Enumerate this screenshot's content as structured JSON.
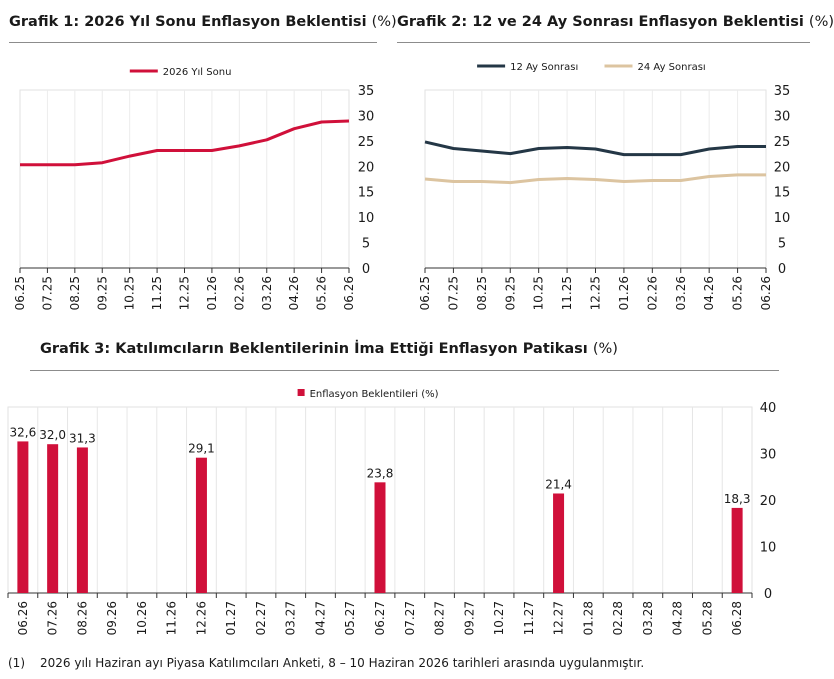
{
  "titles": [
    {
      "main": "Grafik 1: 2026 Yıl Sonu Enflasyon Beklentisi",
      "unit": "(%)"
    },
    {
      "main": "Grafik 2: 12 ve 24 Ay Sonrası Enflasyon Beklentisi",
      "unit": "(%)"
    },
    {
      "main": "Grafik 3: Katılımcıların Beklentilerinin İma Ettiği Enflasyon Patikası",
      "unit": "(%)"
    }
  ],
  "footnote": {
    "num": "(1)",
    "text": "2026 yılı Haziran ayı Piyasa Katılımcıları Anketi, 8 – 10 Haziran 2026 tarihleri arasında uygulanmıştır."
  },
  "chart_data": [
    {
      "type": "line",
      "title": "Grafik 1: 2026 Yıl Sonu Enflasyon Beklentisi (%)",
      "categories": [
        "06.25",
        "07.25",
        "08.25",
        "09.25",
        "10.25",
        "11.25",
        "12.25",
        "01.26",
        "02.26",
        "03.26",
        "04.26",
        "05.26",
        "06.26"
      ],
      "series": [
        {
          "name": "2026 Yıl Sonu",
          "color": "#d0103a",
          "values": [
            20.3,
            20.3,
            20.3,
            20.7,
            22.0,
            23.1,
            23.1,
            23.1,
            24.0,
            25.2,
            27.4,
            28.7,
            28.9
          ]
        }
      ],
      "ylim": [
        0,
        35
      ],
      "yticks": [
        0,
        5,
        10,
        15,
        20,
        25,
        30,
        35
      ],
      "grid": true,
      "legend": "top-center",
      "y_axis": "right"
    },
    {
      "type": "line",
      "title": "Grafik 2: 12 ve 24 Ay Sonrası Enflasyon Beklentisi (%)",
      "categories": [
        "06.25",
        "07.25",
        "08.25",
        "09.25",
        "10.25",
        "11.25",
        "12.25",
        "01.26",
        "02.26",
        "03.26",
        "04.26",
        "05.26",
        "06.26"
      ],
      "series": [
        {
          "name": "12 Ay Sonrası",
          "color": "#243746",
          "values": [
            24.8,
            23.5,
            23.0,
            22.5,
            23.5,
            23.7,
            23.4,
            22.3,
            22.3,
            22.3,
            23.4,
            23.9,
            23.9
          ]
        },
        {
          "name": "24 Ay Sonrası",
          "color": "#dcc4a0",
          "values": [
            17.5,
            17.0,
            17.0,
            16.8,
            17.4,
            17.6,
            17.4,
            17.0,
            17.2,
            17.2,
            18.0,
            18.3,
            18.3
          ]
        }
      ],
      "ylim": [
        0,
        35
      ],
      "yticks": [
        0,
        5,
        10,
        15,
        20,
        25,
        30,
        35
      ],
      "grid": true,
      "legend": "top-center",
      "y_axis": "right"
    },
    {
      "type": "bar",
      "title": "Grafik 3: Katılımcıların Beklentilerinin İma Ettiği Enflasyon Patikası (%)",
      "categories": [
        "06.26",
        "07.26",
        "08.26",
        "09.26",
        "10.26",
        "11.26",
        "12.26",
        "01.27",
        "02.27",
        "03.27",
        "04.27",
        "05.27",
        "06.27",
        "07.27",
        "08.27",
        "09.27",
        "10.27",
        "11.27",
        "12.27",
        "01.28",
        "02.28",
        "03.28",
        "04.28",
        "05.28",
        "06.28"
      ],
      "series": [
        {
          "name": "Enflasyon Beklentileri (%)",
          "color": "#d0103a",
          "values": [
            32.6,
            32.0,
            31.3,
            null,
            null,
            null,
            29.1,
            null,
            null,
            null,
            null,
            null,
            23.8,
            null,
            null,
            null,
            null,
            null,
            21.4,
            null,
            null,
            null,
            null,
            null,
            18.3
          ],
          "labels": [
            "32,6",
            "32,0",
            "31,3",
            "",
            "",
            "",
            "29,1",
            "",
            "",
            "",
            "",
            "",
            "23,8",
            "",
            "",
            "",
            "",
            "",
            "21,4",
            "",
            "",
            "",
            "",
            "",
            "18,3"
          ]
        }
      ],
      "ylim": [
        0,
        40
      ],
      "yticks": [
        0,
        10,
        20,
        30,
        40
      ],
      "grid": true,
      "legend": "top-center",
      "y_axis": "right"
    }
  ]
}
